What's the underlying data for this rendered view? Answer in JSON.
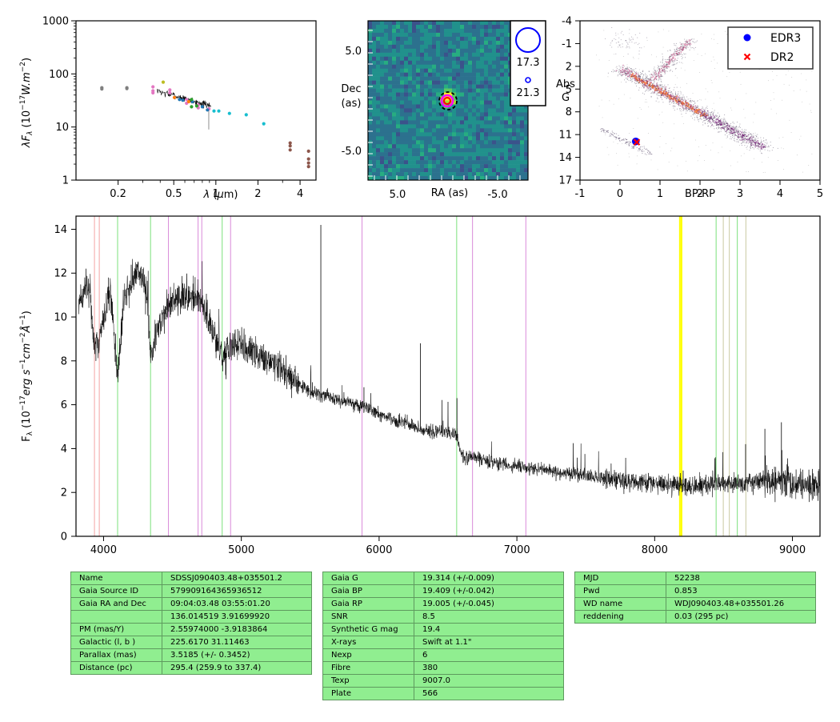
{
  "colors": {
    "spectrum": "#000000",
    "table_bg": "#90ee90",
    "edr3": "#0000ff",
    "dr2": "#ff0000"
  },
  "chart_data": [
    {
      "type": "scatter",
      "panel": "sed",
      "ylabel": "λF_λ (10^-17 W.m^-2)",
      "xlabel": "λ (μm)",
      "x_scale": "log",
      "y_scale": "log",
      "xlim": [
        0.1,
        5.2
      ],
      "ylim": [
        1,
        1000
      ],
      "xticks": [
        "0.2",
        "0.5",
        "1",
        "2",
        "4"
      ],
      "yticks": [
        "1",
        "10",
        "100",
        "1000"
      ],
      "series": [
        {
          "color": "#7f7f7f",
          "points": [
            [
              0.153,
              52
            ],
            [
              0.153,
              55
            ],
            [
              0.231,
              53
            ],
            [
              0.231,
              55
            ]
          ]
        },
        {
          "color": "#e377c2",
          "points": [
            [
              0.355,
              57
            ],
            [
              0.355,
              48
            ],
            [
              0.355,
              44
            ],
            [
              0.469,
              50
            ],
            [
              0.469,
              44
            ],
            [
              0.617,
              33
            ],
            [
              0.617,
              28
            ],
            [
              0.748,
              23
            ],
            [
              0.748,
              26
            ],
            [
              0.893,
              22
            ]
          ]
        },
        {
          "color": "#bcbd22",
          "points": [
            [
              0.42,
              70
            ]
          ]
        },
        {
          "color": "#ff7f0e",
          "points": [
            [
              0.505,
              36
            ],
            [
              0.64,
              30
            ]
          ]
        },
        {
          "color": "#1f77b4",
          "points": [
            [
              0.55,
              33
            ],
            [
              0.58,
              32
            ],
            [
              0.68,
              30
            ],
            [
              0.8,
              24
            ],
            [
              0.87,
              21
            ]
          ]
        },
        {
          "color": "#2ca02c",
          "points": [
            [
              0.67,
              33
            ],
            [
              0.67,
              24
            ],
            [
              0.73,
              25
            ]
          ]
        },
        {
          "color": "#17becf",
          "points": [
            [
              0.97,
              20
            ],
            [
              1.05,
              20
            ],
            [
              1.25,
              18
            ],
            [
              1.65,
              17
            ],
            [
              2.2,
              11.5
            ]
          ]
        },
        {
          "color": "#8c564b",
          "points": [
            [
              3.4,
              5.0
            ],
            [
              3.4,
              4.4
            ],
            [
              3.4,
              3.7
            ],
            [
              4.6,
              3.5
            ],
            [
              4.6,
              2.5
            ],
            [
              4.6,
              2.1
            ],
            [
              4.6,
              1.8
            ]
          ]
        }
      ]
    },
    {
      "type": "heatmap",
      "panel": "image",
      "xlabel": "RA (as)",
      "ylabel": "Dec\n(as)",
      "xticks": [
        "5.0",
        "-5.0"
      ],
      "yticks": [
        "5.0",
        "-5.0"
      ],
      "legend": [
        {
          "label": "17.3"
        },
        {
          "label": "21.3"
        }
      ]
    },
    {
      "type": "scatter",
      "panel": "hr",
      "xlabel": "BP-RP",
      "ylabel": "Abs\nG",
      "xlim": [
        -1,
        5
      ],
      "ylim": [
        17,
        -4
      ],
      "xticks": [
        "-1",
        "0",
        "1",
        "2",
        "3",
        "4",
        "5"
      ],
      "yticks": [
        "-4",
        "-1",
        "2",
        "5",
        "8",
        "11",
        "14",
        "17"
      ],
      "legend": "top-right",
      "series": [
        {
          "name": "EDR3",
          "marker": "circle",
          "color": "#0000ff",
          "points": [
            [
              0.395,
              11.9
            ]
          ]
        },
        {
          "name": "DR2",
          "marker": "x",
          "color": "#ff0000",
          "points": [
            [
              0.42,
              12.0
            ]
          ]
        }
      ]
    },
    {
      "type": "line",
      "panel": "spectrum",
      "xlabel": "",
      "ylabel": "F_λ (10^-17 erg s^-1 cm^-2 Å^-1)",
      "xlim": [
        3800,
        9200
      ],
      "ylim": [
        0,
        14.6
      ],
      "xticks": [
        "4000",
        "5000",
        "6000",
        "7000",
        "8000",
        "9000"
      ],
      "yticks": [
        "0",
        "2",
        "4",
        "6",
        "8",
        "10",
        "12",
        "14"
      ],
      "continuum": [
        [
          3820,
          10.8
        ],
        [
          3900,
          11.3
        ],
        [
          3935,
          8.5
        ],
        [
          3970,
          9.0
        ],
        [
          4050,
          11.3
        ],
        [
          4101,
          7.3
        ],
        [
          4150,
          11.0
        ],
        [
          4250,
          12.3
        ],
        [
          4320,
          11.0
        ],
        [
          4340,
          8.2
        ],
        [
          4400,
          9.6
        ],
        [
          4470,
          10.6
        ],
        [
          4600,
          11.1
        ],
        [
          4720,
          10.6
        ],
        [
          4861,
          8.1
        ],
        [
          4950,
          8.8
        ],
        [
          5100,
          8.4
        ],
        [
          5300,
          7.6
        ],
        [
          5500,
          6.6
        ],
        [
          5800,
          6.1
        ],
        [
          6000,
          5.6
        ],
        [
          6300,
          4.9
        ],
        [
          6560,
          4.6
        ],
        [
          6600,
          3.7
        ],
        [
          6800,
          3.4
        ],
        [
          7000,
          3.2
        ],
        [
          7200,
          3.0
        ],
        [
          7500,
          2.8
        ],
        [
          7800,
          2.5
        ],
        [
          8000,
          2.4
        ],
        [
          8300,
          2.3
        ],
        [
          8600,
          2.4
        ],
        [
          8800,
          2.55
        ],
        [
          9000,
          2.4
        ],
        [
          9200,
          2.2
        ]
      ],
      "spikes": [
        [
          5577,
          14.2
        ],
        [
          6300,
          8.8
        ],
        [
          6364,
          4.7
        ],
        [
          5890,
          6.8
        ],
        [
          6565,
          6.3
        ],
        [
          8920,
          5.2
        ],
        [
          8800,
          4.9
        ],
        [
          8660,
          4.2
        ]
      ],
      "vlines": [
        {
          "x": 3934,
          "color": "#f4a3a3"
        },
        {
          "x": 3969,
          "color": "#f4a3a3"
        },
        {
          "x": 4102,
          "color": "#7be07b"
        },
        {
          "x": 4341,
          "color": "#7be07b"
        },
        {
          "x": 4861,
          "color": "#7be07b"
        },
        {
          "x": 6563,
          "color": "#7be07b"
        },
        {
          "x": 8446,
          "color": "#7be07b"
        },
        {
          "x": 8600,
          "color": "#7be07b"
        },
        {
          "x": 4471,
          "color": "#d98ad9"
        },
        {
          "x": 4686,
          "color": "#d98ad9"
        },
        {
          "x": 4713,
          "color": "#d98ad9"
        },
        {
          "x": 4922,
          "color": "#d98ad9"
        },
        {
          "x": 5876,
          "color": "#d98ad9"
        },
        {
          "x": 6678,
          "color": "#d98ad9"
        },
        {
          "x": 7065,
          "color": "#d98ad9"
        },
        {
          "x": 8183,
          "color": "#ffff00"
        },
        {
          "x": 8195,
          "color": "#ffff00"
        },
        {
          "x": 8498,
          "color": "#c9c9a0"
        },
        {
          "x": 8542,
          "color": "#c9c9a0"
        },
        {
          "x": 8662,
          "color": "#c9c9a0"
        }
      ]
    }
  ],
  "tables": {
    "left": [
      [
        "Name",
        "SDSSJ090403.48+035501.2"
      ],
      [
        "Gaia Source ID",
        "579909164365936512"
      ],
      [
        "Gaia RA and Dec",
        "09:04:03.48    03:55:01.20"
      ],
      [
        "",
        "136.014519    3.91699920"
      ],
      [
        "PM (mas/Y)",
        "2.55974000    -3.9183864"
      ],
      [
        "Galactic (l, b )",
        "225.6170    31.11463"
      ],
      [
        "Parallax (mas)",
        "3.5185 (+/- 0.3452)"
      ],
      [
        "Distance (pc)",
        "295.4 (259.9 to 337.4)"
      ]
    ],
    "middle": [
      [
        "Gaia G",
        "19.314 (+/-0.009)"
      ],
      [
        "Gaia BP",
        "19.409 (+/-0.042)"
      ],
      [
        "Gaia RP",
        "19.005 (+/-0.045)"
      ],
      [
        "SNR",
        "8.5"
      ],
      [
        "Synthetic G mag",
        "19.4"
      ],
      [
        "X-rays",
        "Swift at 1.1\""
      ],
      [
        "Nexp",
        "6"
      ],
      [
        "Fibre",
        "380"
      ],
      [
        "Texp",
        "9007.0"
      ],
      [
        "Plate",
        "566"
      ]
    ],
    "right": [
      [
        "MJD",
        "52238"
      ],
      [
        "Pwd",
        "0.853"
      ],
      [
        "WD name",
        "WDJ090403.48+035501.26"
      ],
      [
        "reddening",
        "0.03 (295 pc)"
      ]
    ]
  }
}
